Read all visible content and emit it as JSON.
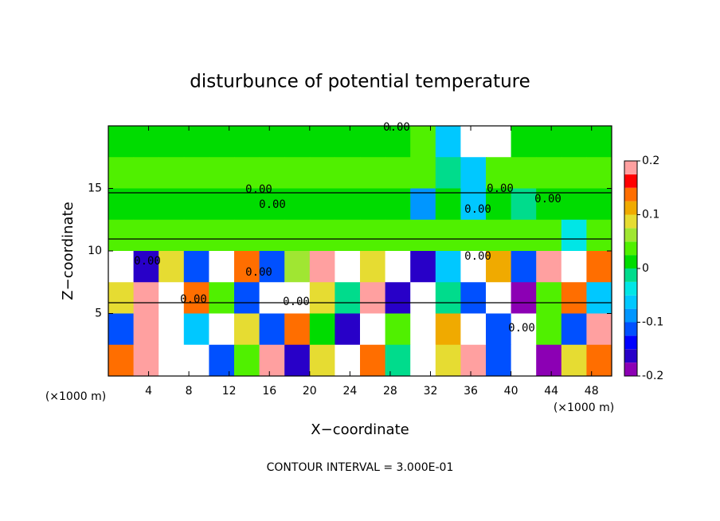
{
  "chart_data": {
    "type": "contour",
    "title": "disturbunce of potential temperature",
    "x_label": "X−coordinate",
    "y_label": "Z−coordinate",
    "x_unit_label": "(×1000 m)",
    "x_unit_label_right": "(×1000 m)",
    "footnote": "CONTOUR INTERVAL = 3.000E-01",
    "xlim": [
      0,
      50
    ],
    "ylim": [
      0,
      20
    ],
    "xticks": [
      4,
      8,
      12,
      16,
      20,
      24,
      28,
      32,
      36,
      40,
      44,
      48
    ],
    "yticks": [
      5,
      10,
      15
    ],
    "x": [
      1.25,
      3.75,
      6.25,
      8.75,
      11.25,
      13.75,
      16.25,
      18.75,
      21.25,
      23.75,
      26.25,
      28.75,
      31.25,
      33.75,
      36.25,
      38.75,
      41.25,
      43.75,
      46.25,
      48.75
    ],
    "y": [
      18.75,
      16.25,
      13.75,
      11.25,
      8.75,
      6.25,
      3.75,
      1.25
    ],
    "z": [
      [
        0.02,
        0.02,
        0.02,
        0.02,
        0.02,
        0.02,
        0.02,
        0.02,
        0.02,
        0.02,
        0.02,
        0.02,
        0.03,
        -0.05,
        0.25,
        0.25,
        0.02,
        0.02,
        0.02,
        0.02
      ],
      [
        0.03,
        0.03,
        0.03,
        0.03,
        0.03,
        0.03,
        0.03,
        0.03,
        0.03,
        0.03,
        0.03,
        0.03,
        0.03,
        0.0,
        -0.05,
        0.03,
        0.03,
        0.03,
        0.03,
        0.03
      ],
      [
        0.02,
        0.02,
        0.02,
        0.02,
        0.02,
        0.02,
        0.02,
        0.02,
        0.02,
        0.02,
        0.02,
        0.02,
        -0.08,
        0.02,
        -0.05,
        0.02,
        0.0,
        0.02,
        0.02,
        0.02
      ],
      [
        0.04,
        0.04,
        0.04,
        0.04,
        0.04,
        0.04,
        0.04,
        0.04,
        0.04,
        0.04,
        0.04,
        0.04,
        0.04,
        0.04,
        0.04,
        0.04,
        0.04,
        0.04,
        -0.03,
        0.04
      ],
      [
        0.25,
        -0.15,
        0.08,
        -0.1,
        0.25,
        0.15,
        -0.12,
        0.06,
        0.2,
        -0.25,
        0.1,
        0.25,
        -0.15,
        -0.05,
        0.25,
        0.12,
        -0.1,
        0.2,
        -0.25,
        0.15
      ],
      [
        0.1,
        0.2,
        -0.25,
        0.15,
        0.05,
        -0.1,
        0.25,
        -0.25,
        0.1,
        0.0,
        0.2,
        -0.15,
        0.25,
        0.0,
        -0.1,
        0.25,
        -0.2,
        0.05,
        0.15,
        -0.05
      ],
      [
        -0.1,
        0.18,
        0.25,
        -0.05,
        0.22,
        0.1,
        -0.12,
        0.15,
        0.02,
        -0.15,
        0.25,
        0.05,
        -0.25,
        0.12,
        0.25,
        -0.1,
        0.22,
        0.05,
        -0.12,
        0.2
      ],
      [
        0.15,
        0.2,
        -0.22,
        0.25,
        -0.1,
        0.05,
        0.2,
        -0.15,
        0.1,
        -0.25,
        0.15,
        0.0,
        -0.25,
        0.1,
        0.2,
        -0.1,
        0.25,
        -0.2,
        0.1,
        0.15
      ]
    ],
    "levels": [
      -0.2,
      -0.175,
      -0.15,
      -0.125,
      -0.1,
      -0.075,
      -0.05,
      -0.025,
      0,
      0.025,
      0.05,
      0.075,
      0.1,
      0.125,
      0.15,
      0.175,
      0.2
    ],
    "colors": [
      "#8c00b4",
      "#2800c8",
      "#0000ff",
      "#0050ff",
      "#0096ff",
      "#00c8ff",
      "#00e6e6",
      "#00dc8c",
      "#00dc00",
      "#50f000",
      "#a0e632",
      "#e6dc32",
      "#f0aa00",
      "#ff6e00",
      "#ff0000",
      "#ffa0a0"
    ],
    "out_of_range_color": "#ffffff",
    "colorbar_ticks": [
      -0.2,
      -0.1,
      0,
      0.1,
      0.2
    ],
    "contour_labels": [
      "0.00",
      "0.00",
      "0.00",
      "0.00",
      "0.00",
      "0.00",
      "0.00",
      "0.00",
      "0.00",
      "0.00",
      "0.00",
      "0.00"
    ]
  }
}
